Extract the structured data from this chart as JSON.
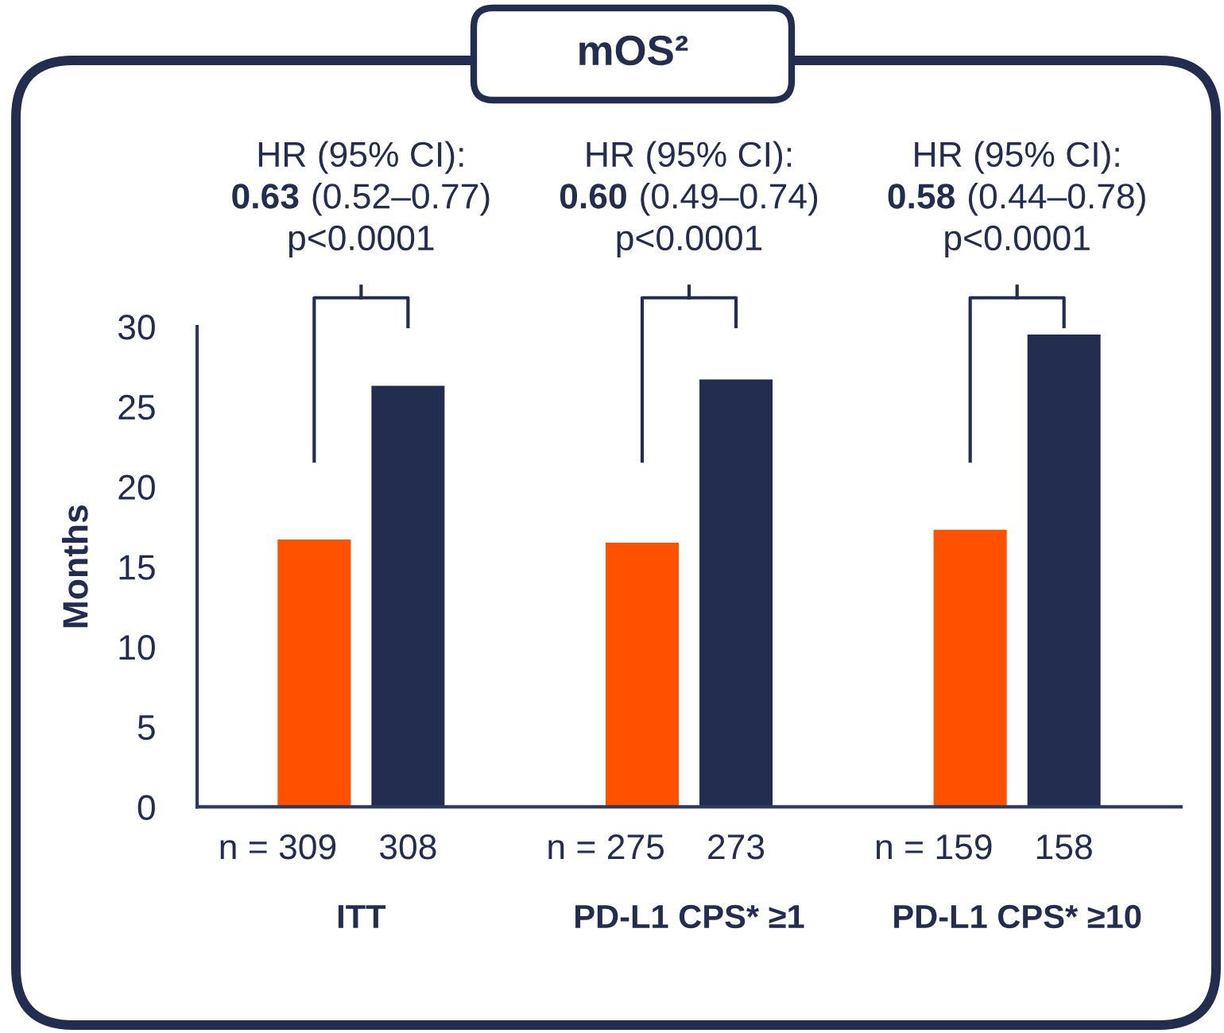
{
  "chart_data": {
    "type": "bar",
    "title": "mOS²",
    "ylabel": "Months",
    "categories": [
      "ITT",
      "PD-L1 CPS* ≥1",
      "PD-L1 CPS* ≥10"
    ],
    "series": [
      {
        "color": "#ff5100",
        "values": [
          16.7,
          16.5,
          17.3
        ]
      },
      {
        "color": "#222d50",
        "values": [
          26.3,
          26.7,
          29.5
        ]
      }
    ],
    "ylim": [
      0,
      30
    ],
    "yticks": [
      0,
      5,
      10,
      15,
      20,
      25,
      30
    ],
    "annotations": [
      "HR (95% CI):\n0.63 (0.52–0.77)\np<0.0001",
      "HR (95% CI):\n0.60 (0.49–0.74)\np<0.0001",
      "HR (95% CI):\n0.58 (0.44–0.78)\np<0.0001",
      "n = 309",
      "308",
      "n = 275",
      "273",
      "n = 159",
      "158"
    ]
  }
}
